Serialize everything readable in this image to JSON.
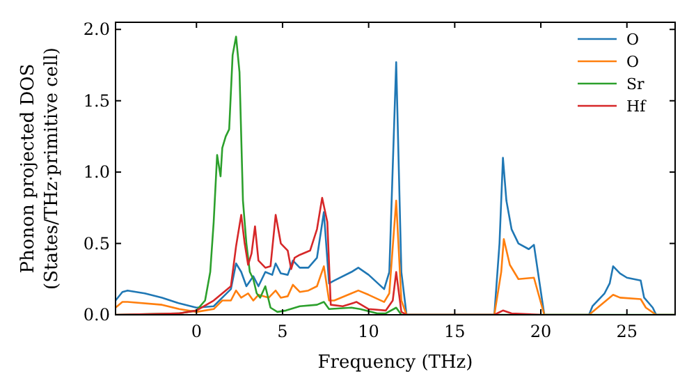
{
  "chart_data": {
    "type": "line",
    "xlabel": "Frequency (THz)",
    "ylabel": "Phonon projected DOS\n(States/THz·primitive cell)",
    "xlim": [
      -4.7,
      27.8
    ],
    "ylim": [
      0,
      2.05
    ],
    "xticks": [
      0,
      5,
      10,
      15,
      20,
      25
    ],
    "yticks": [
      {
        "value": 0,
        "label": "0.0"
      },
      {
        "value": 0.5,
        "label": "0.5"
      },
      {
        "value": 1,
        "label": "1.0"
      },
      {
        "value": 1.5,
        "label": "1.5"
      },
      {
        "value": 2,
        "label": "2.0"
      }
    ],
    "legend": "top right",
    "grid": false,
    "series": [
      {
        "name": "O",
        "color": "#1f77b4",
        "x": [
          -4.7,
          -4.3,
          -4,
          -3,
          -2,
          -1,
          0,
          1,
          1.5,
          2,
          2.3,
          2.6,
          2.9,
          3.3,
          3.6,
          4,
          4.4,
          4.6,
          4.9,
          5.3,
          5.6,
          6,
          6.5,
          7,
          7.4,
          7.7,
          8,
          9,
          9.4,
          10,
          10.9,
          11.2,
          11.6,
          11.9,
          12.2,
          17.3,
          17.6,
          17.8,
          18,
          18.3,
          18.7,
          19.3,
          19.6,
          20.2,
          22.8,
          23,
          23.7,
          24,
          24.2,
          24.6,
          25,
          25.8,
          26,
          26.5,
          26.7,
          27.8
        ],
        "values": [
          0.1,
          0.16,
          0.17,
          0.15,
          0.12,
          0.08,
          0.05,
          0.06,
          0.12,
          0.18,
          0.36,
          0.3,
          0.2,
          0.27,
          0.2,
          0.3,
          0.28,
          0.36,
          0.29,
          0.28,
          0.38,
          0.33,
          0.33,
          0.4,
          0.72,
          0.22,
          0.24,
          0.3,
          0.33,
          0.28,
          0.18,
          0.3,
          1.77,
          0.3,
          0,
          0,
          0.5,
          1.1,
          0.8,
          0.6,
          0.5,
          0.46,
          0.49,
          0,
          0,
          0.06,
          0.15,
          0.22,
          0.34,
          0.29,
          0.26,
          0.24,
          0.12,
          0.05,
          0,
          0
        ]
      },
      {
        "name": "O",
        "color": "#ff7f0e",
        "x": [
          -4.7,
          -4.3,
          -4,
          -2,
          -1,
          0,
          1,
          1.5,
          2,
          2.3,
          2.6,
          3,
          3.3,
          3.6,
          4.2,
          4.6,
          4.9,
          5.3,
          5.6,
          6,
          6.5,
          7,
          7.4,
          7.7,
          8,
          9,
          9.4,
          10,
          10.9,
          11.2,
          11.6,
          11.9,
          12.2,
          17.3,
          17.7,
          17.85,
          18.2,
          18.7,
          19.6,
          20.2,
          22.8,
          24.2,
          24.6,
          25.8,
          26.1,
          26.7,
          27.8
        ],
        "values": [
          0.05,
          0.09,
          0.09,
          0.07,
          0.04,
          0.02,
          0.04,
          0.1,
          0.1,
          0.17,
          0.12,
          0.15,
          0.1,
          0.14,
          0.12,
          0.17,
          0.12,
          0.13,
          0.21,
          0.16,
          0.17,
          0.2,
          0.34,
          0.1,
          0.1,
          0.15,
          0.17,
          0.14,
          0.09,
          0.15,
          0.8,
          0.1,
          0,
          0,
          0.3,
          0.53,
          0.35,
          0.25,
          0.26,
          0,
          0,
          0.14,
          0.12,
          0.11,
          0.05,
          0,
          0
        ]
      },
      {
        "name": "Sr",
        "color": "#2ca02c",
        "x": [
          -4.7,
          -1,
          0,
          0.5,
          0.8,
          1,
          1.2,
          1.4,
          1.5,
          1.7,
          1.9,
          2.1,
          2.3,
          2.5,
          2.7,
          2.9,
          3.1,
          3.3,
          3.5,
          3.7,
          4,
          4.3,
          4.7,
          5.2,
          6,
          7,
          7.4,
          7.7,
          9,
          9.5,
          10.5,
          11,
          11.6,
          11.9,
          27.8
        ],
        "values": [
          0,
          0.01,
          0.03,
          0.1,
          0.3,
          0.65,
          1.12,
          0.97,
          1.17,
          1.25,
          1.3,
          1.82,
          1.95,
          1.7,
          0.8,
          0.5,
          0.3,
          0.25,
          0.15,
          0.12,
          0.2,
          0.05,
          0.02,
          0.03,
          0.06,
          0.07,
          0.09,
          0.04,
          0.05,
          0.04,
          0.01,
          0.01,
          0.05,
          0,
          0
        ]
      },
      {
        "name": "Hf",
        "color": "#d62728",
        "x": [
          -4.7,
          -1,
          0,
          1,
          1.5,
          2,
          2.3,
          2.6,
          2.8,
          3,
          3.2,
          3.4,
          3.6,
          4,
          4.3,
          4.6,
          4.9,
          5.3,
          5.5,
          5.7,
          6,
          6.6,
          7,
          7.3,
          7.6,
          7.8,
          8.5,
          9.3,
          10,
          11,
          11.4,
          11.6,
          11.9,
          12.2,
          17.3,
          17.8,
          18.3,
          20
        ],
        "values": [
          0,
          0.01,
          0.03,
          0.1,
          0.15,
          0.2,
          0.48,
          0.7,
          0.5,
          0.35,
          0.43,
          0.62,
          0.38,
          0.33,
          0.34,
          0.7,
          0.5,
          0.45,
          0.32,
          0.4,
          0.42,
          0.45,
          0.6,
          0.82,
          0.65,
          0.07,
          0.06,
          0.09,
          0.04,
          0.03,
          0.1,
          0.3,
          0.02,
          0,
          0,
          0.03,
          0.01,
          0
        ]
      }
    ]
  }
}
